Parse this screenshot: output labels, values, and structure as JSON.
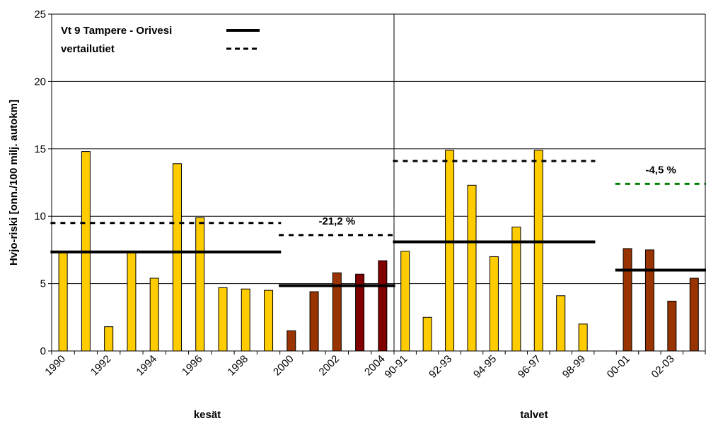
{
  "chart_data": {
    "type": "bar",
    "ylabel": "Hvjo-riski [onn./100 milj. autokm]",
    "ylim": [
      0,
      25
    ],
    "yticks": [
      0,
      5,
      10,
      15,
      20,
      25
    ],
    "grid": true,
    "legend_position": "top-left",
    "legend": [
      {
        "label": "Vt 9 Tampere - Orivesi",
        "style": "solid",
        "color": "#000000"
      },
      {
        "label": "vertailutiet",
        "style": "dotted",
        "color": "#000000"
      }
    ],
    "colors": {
      "before": "#FFCC00",
      "after": "#993300",
      "after_dark": "#800000",
      "green": "#008000"
    },
    "groups": [
      {
        "name": "kesät",
        "categories": [
          "1990",
          "1991",
          "1992",
          "1993",
          "1994",
          "1995",
          "1996",
          "1997",
          "1998",
          "1999",
          "2000",
          "2001",
          "2002",
          "2003",
          "2004"
        ],
        "tick_labels": [
          "1990",
          "1992",
          "1994",
          "1996",
          "1998",
          "2000",
          "2002",
          "2004"
        ],
        "values": [
          7.3,
          14.8,
          1.8,
          7.4,
          5.4,
          13.9,
          9.9,
          4.7,
          4.6,
          4.5,
          1.5,
          4.4,
          5.8,
          5.7,
          6.7
        ],
        "period": [
          "before",
          "before",
          "before",
          "before",
          "before",
          "before",
          "before",
          "before",
          "before",
          "before",
          "after",
          "after",
          "after",
          "after_dark",
          "after_dark"
        ],
        "averages": [
          {
            "series": "Vt 9 Tampere - Orivesi",
            "style": "solid",
            "from": "1990",
            "to": "1999",
            "value": 7.35
          },
          {
            "series": "vertailutiet",
            "style": "dotted",
            "from": "1990",
            "to": "1999",
            "value": 9.5
          },
          {
            "series": "Vt 9 Tampere - Orivesi",
            "style": "solid",
            "from": "2000",
            "to": "2004",
            "value": 4.85
          },
          {
            "series": "vertailutiet",
            "style": "dotted",
            "from": "2000",
            "to": "2004",
            "value": 8.6
          }
        ],
        "annotation": "-21,2 %"
      },
      {
        "name": "talvet",
        "categories": [
          "90-91",
          "91-92",
          "92-93",
          "93-94",
          "94-95",
          "95-96",
          "96-97",
          "97-98",
          "98-99",
          "99-00",
          "00-01",
          "01-02",
          "02-03",
          "03-04"
        ],
        "tick_labels": [
          "90-91",
          "92-93",
          "94-95",
          "96-97",
          "98-99",
          "00-01",
          "02-03"
        ],
        "values": [
          7.4,
          2.5,
          14.9,
          12.3,
          7.0,
          9.2,
          14.9,
          4.1,
          2.0,
          null,
          7.6,
          7.5,
          3.7,
          5.4
        ],
        "period": [
          "before",
          "before",
          "before",
          "before",
          "before",
          "before",
          "before",
          "before",
          "before",
          "before",
          "after",
          "after",
          "after",
          "after"
        ],
        "averages": [
          {
            "series": "Vt 9 Tampere - Orivesi",
            "style": "solid",
            "from": "90-91",
            "to": "98-99",
            "value": 8.1
          },
          {
            "series": "vertailutiet",
            "style": "dotted",
            "from": "90-91",
            "to": "98-99",
            "value": 14.1
          },
          {
            "series": "Vt 9 Tampere - Orivesi",
            "style": "solid",
            "from": "00-01",
            "to": "03-04",
            "value": 6.0
          },
          {
            "series": "vertailutiet",
            "style": "dotted",
            "color": "green",
            "from": "00-01",
            "to": "03-04",
            "value": 12.4
          }
        ],
        "annotation": "-4,5 %"
      }
    ]
  }
}
